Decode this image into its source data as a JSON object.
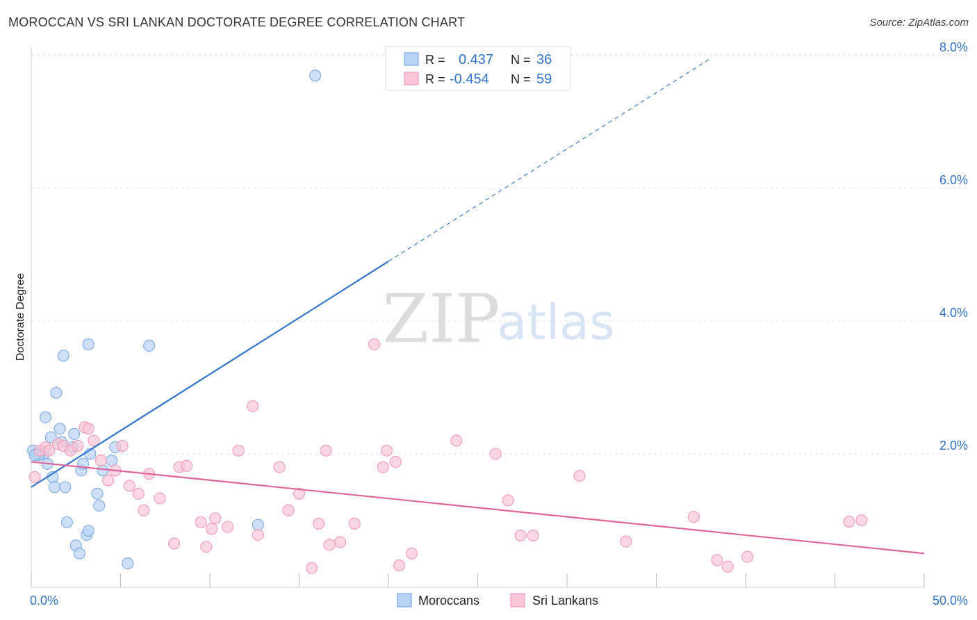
{
  "header": {
    "title": "MOROCCAN VS SRI LANKAN DOCTORATE DEGREE CORRELATION CHART",
    "source": "Source: ZipAtlas.com"
  },
  "watermark": {
    "zip": "ZIP",
    "atlas": "atlas"
  },
  "chart_data": {
    "type": "scatter",
    "title": "MOROCCAN VS SRI LANKAN DOCTORATE DEGREE CORRELATION CHART",
    "ylabel": "Doctorate Degree",
    "xlabel": "",
    "xlim": [
      0,
      50
    ],
    "ylim": [
      0,
      8.4
    ],
    "x_tick_labels": [
      "0.0%",
      "50.0%"
    ],
    "y_ticks": [
      {
        "value": 2,
        "label": "2.0%"
      },
      {
        "value": 4,
        "label": "4.0%"
      },
      {
        "value": 6,
        "label": "6.0%"
      },
      {
        "value": 8,
        "label": "8.0%"
      }
    ],
    "grid": true,
    "legend_placement": "bottom-center",
    "stats_box_placement": "top-center",
    "series": [
      {
        "name": "Moroccans",
        "color": "#7aaae8",
        "fill": "#b9d3f4",
        "line_color": "#2f74cc",
        "stat_r_label": "R =",
        "stat_r": "0.437",
        "stat_n_label": "N =",
        "stat_n": "36",
        "trend": {
          "x0": 0,
          "y0": 1.5,
          "x1": 20,
          "y1": 4.9,
          "dash_x1": 38,
          "dash_y1": 7.95
        },
        "points": [
          [
            0.1,
            2.05
          ],
          [
            0.3,
            2.0
          ],
          [
            0.5,
            2.0
          ],
          [
            0.7,
            2.0
          ],
          [
            0.4,
            1.98
          ],
          [
            0.8,
            2.55
          ],
          [
            0.9,
            1.85
          ],
          [
            1.1,
            2.25
          ],
          [
            1.2,
            1.65
          ],
          [
            1.3,
            1.5
          ],
          [
            1.4,
            2.92
          ],
          [
            1.6,
            2.38
          ],
          [
            1.7,
            2.18
          ],
          [
            1.8,
            3.48
          ],
          [
            1.9,
            1.5
          ],
          [
            2.0,
            0.97
          ],
          [
            2.3,
            2.1
          ],
          [
            2.5,
            0.62
          ],
          [
            2.7,
            0.5
          ],
          [
            2.8,
            1.75
          ],
          [
            2.9,
            1.85
          ],
          [
            3.1,
            0.78
          ],
          [
            3.2,
            0.84
          ],
          [
            3.3,
            2.0
          ],
          [
            3.2,
            3.65
          ],
          [
            2.4,
            2.3
          ],
          [
            3.7,
            1.4
          ],
          [
            3.8,
            1.22
          ],
          [
            4.0,
            1.75
          ],
          [
            4.5,
            1.9
          ],
          [
            4.7,
            2.1
          ],
          [
            5.4,
            0.35
          ],
          [
            6.6,
            3.63
          ],
          [
            12.7,
            0.93
          ],
          [
            15.9,
            7.7
          ],
          [
            0.2,
            1.98
          ]
        ]
      },
      {
        "name": "Sri Lankans",
        "color": "#f09ab8",
        "fill": "#f8c6d6",
        "line_color": "#e0649a",
        "stat_r_label": "R =",
        "stat_r": "-0.454",
        "stat_n_label": "N =",
        "stat_n": "59",
        "trend": {
          "x0": 0,
          "y0": 1.88,
          "x1": 50,
          "y1": 0.5
        },
        "points": [
          [
            0.2,
            1.65
          ],
          [
            0.5,
            2.05
          ],
          [
            0.8,
            2.1
          ],
          [
            1.0,
            2.05
          ],
          [
            1.5,
            2.15
          ],
          [
            1.8,
            2.12
          ],
          [
            2.2,
            2.05
          ],
          [
            2.6,
            2.12
          ],
          [
            3.0,
            2.4
          ],
          [
            3.2,
            2.38
          ],
          [
            3.5,
            2.2
          ],
          [
            3.9,
            1.9
          ],
          [
            4.3,
            1.6
          ],
          [
            4.7,
            1.75
          ],
          [
            5.1,
            2.12
          ],
          [
            5.5,
            1.52
          ],
          [
            6.0,
            1.4
          ],
          [
            6.3,
            1.15
          ],
          [
            6.6,
            1.7
          ],
          [
            7.2,
            1.33
          ],
          [
            8.0,
            0.65
          ],
          [
            8.3,
            1.8
          ],
          [
            8.7,
            1.82
          ],
          [
            9.5,
            0.97
          ],
          [
            9.8,
            0.6
          ],
          [
            10.1,
            0.87
          ],
          [
            10.3,
            1.03
          ],
          [
            11.0,
            0.9
          ],
          [
            11.6,
            2.05
          ],
          [
            12.4,
            2.72
          ],
          [
            12.7,
            0.78
          ],
          [
            13.9,
            1.8
          ],
          [
            14.4,
            1.15
          ],
          [
            15.0,
            1.4
          ],
          [
            15.7,
            0.28
          ],
          [
            16.1,
            0.95
          ],
          [
            16.5,
            2.05
          ],
          [
            16.7,
            0.63
          ],
          [
            17.3,
            0.67
          ],
          [
            18.1,
            0.95
          ],
          [
            19.2,
            3.65
          ],
          [
            19.7,
            1.8
          ],
          [
            19.9,
            2.05
          ],
          [
            20.4,
            1.88
          ],
          [
            20.6,
            0.32
          ],
          [
            21.3,
            0.5
          ],
          [
            23.8,
            2.2
          ],
          [
            26.0,
            2.0
          ],
          [
            26.7,
            1.3
          ],
          [
            27.4,
            0.77
          ],
          [
            28.1,
            0.77
          ],
          [
            30.7,
            1.67
          ],
          [
            33.3,
            0.68
          ],
          [
            37.1,
            1.05
          ],
          [
            38.4,
            0.4
          ],
          [
            39.0,
            0.3
          ],
          [
            40.1,
            0.45
          ],
          [
            45.8,
            0.98
          ],
          [
            46.5,
            1.0
          ]
        ]
      }
    ]
  }
}
